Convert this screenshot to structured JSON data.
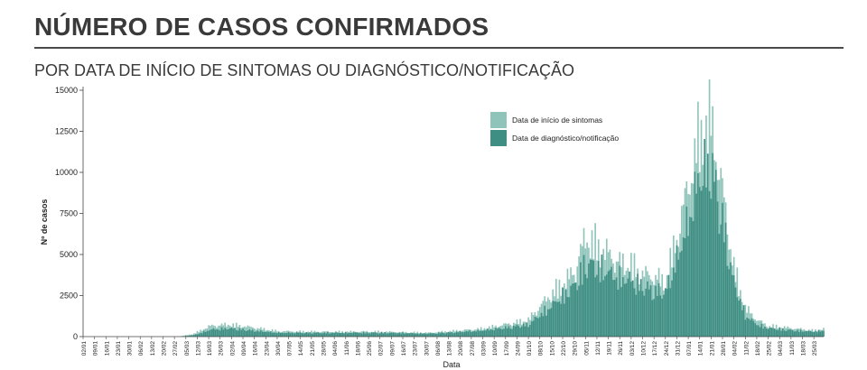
{
  "header": {
    "title": "NÚMERO DE CASOS CONFIRMADOS",
    "subtitle": "POR DATA DE INÍCIO DE SINTOMAS OU DIAGNÓSTICO/NOTIFICAÇÃO"
  },
  "colors": {
    "symptom_onset": "#8fc4bb",
    "diagnosis": "#3f8e83"
  },
  "chart_data": {
    "type": "bar",
    "xlabel": "Data",
    "ylabel": "Nº de casos",
    "ylim": [
      0,
      15000
    ],
    "yticks": [
      "0",
      "2500",
      "5000",
      "7500",
      "10000",
      "12500",
      "15000"
    ],
    "ytick_values": [
      0,
      2500,
      5000,
      7500,
      10000,
      12500,
      15000
    ],
    "grid": false,
    "legend": "top-center",
    "date_start": "2020-01-02",
    "date_end": "2021-03-31",
    "xticks": [
      "02/01",
      "09/01",
      "16/01",
      "23/01",
      "30/01",
      "06/02",
      "13/02",
      "20/02",
      "27/02",
      "05/03",
      "12/03",
      "19/03",
      "26/03",
      "02/04",
      "09/04",
      "16/04",
      "23/04",
      "30/04",
      "07/05",
      "14/05",
      "21/05",
      "28/05",
      "04/06",
      "11/06",
      "18/06",
      "25/06",
      "02/07",
      "09/07",
      "16/07",
      "23/07",
      "30/07",
      "06/08",
      "13/08",
      "20/08",
      "27/08",
      "03/09",
      "10/09",
      "17/09",
      "24/09",
      "01/10",
      "08/10",
      "15/10",
      "22/10",
      "29/10",
      "05/11",
      "12/11",
      "19/11",
      "26/11",
      "03/12",
      "10/12",
      "17/12",
      "24/12",
      "31/12",
      "07/01",
      "14/01",
      "21/01",
      "28/01",
      "04/02",
      "11/02",
      "18/02",
      "25/02",
      "04/03",
      "11/03",
      "18/03",
      "25/03"
    ],
    "series": [
      {
        "name": "Data de início de sintomas",
        "x": [
          "2020-03-01",
          "2020-03-10",
          "2020-03-20",
          "2020-04-01",
          "2020-04-15",
          "2020-05-01",
          "2020-06-01",
          "2020-07-01",
          "2020-08-01",
          "2020-09-01",
          "2020-09-15",
          "2020-10-01",
          "2020-10-15",
          "2020-10-29",
          "2020-11-05",
          "2020-11-12",
          "2020-11-19",
          "2020-11-26",
          "2020-12-03",
          "2020-12-10",
          "2020-12-17",
          "2020-12-24",
          "2020-12-31",
          "2021-01-07",
          "2021-01-14",
          "2021-01-21",
          "2021-01-28",
          "2021-02-04",
          "2021-02-11",
          "2021-02-18",
          "2021-02-25",
          "2021-03-04",
          "2021-03-11",
          "2021-03-18",
          "2021-03-25",
          "2021-03-31"
        ],
        "values": [
          0,
          200,
          700,
          800,
          600,
          350,
          320,
          330,
          250,
          500,
          750,
          1100,
          2800,
          4200,
          6500,
          6000,
          5400,
          4800,
          4700,
          4100,
          3900,
          3600,
          6500,
          9800,
          13200,
          14200,
          9500,
          4500,
          1900,
          1100,
          700,
          650,
          550,
          480,
          400,
          500
        ]
      },
      {
        "name": "Data de diagnóstico/notificação",
        "x": [
          "2020-03-01",
          "2020-03-10",
          "2020-03-20",
          "2020-04-01",
          "2020-04-15",
          "2020-05-01",
          "2020-06-01",
          "2020-07-01",
          "2020-08-01",
          "2020-09-01",
          "2020-09-15",
          "2020-10-01",
          "2020-10-15",
          "2020-10-29",
          "2020-11-05",
          "2020-11-12",
          "2020-11-19",
          "2020-11-26",
          "2020-12-03",
          "2020-12-10",
          "2020-12-17",
          "2020-12-24",
          "2020-12-31",
          "2021-01-07",
          "2021-01-14",
          "2021-01-21",
          "2021-01-28",
          "2021-02-04",
          "2021-02-11",
          "2021-02-18",
          "2021-02-25",
          "2021-03-04",
          "2021-03-11",
          "2021-03-18",
          "2021-03-25",
          "2021-03-31"
        ],
        "values": [
          0,
          100,
          450,
          550,
          400,
          250,
          250,
          260,
          200,
          380,
          550,
          800,
          2000,
          3300,
          4800,
          4600,
          4200,
          3800,
          3700,
          3300,
          3000,
          2900,
          5000,
          7500,
          10500,
          11300,
          7600,
          3500,
          1400,
          800,
          550,
          500,
          420,
          380,
          330,
          400
        ]
      }
    ]
  }
}
